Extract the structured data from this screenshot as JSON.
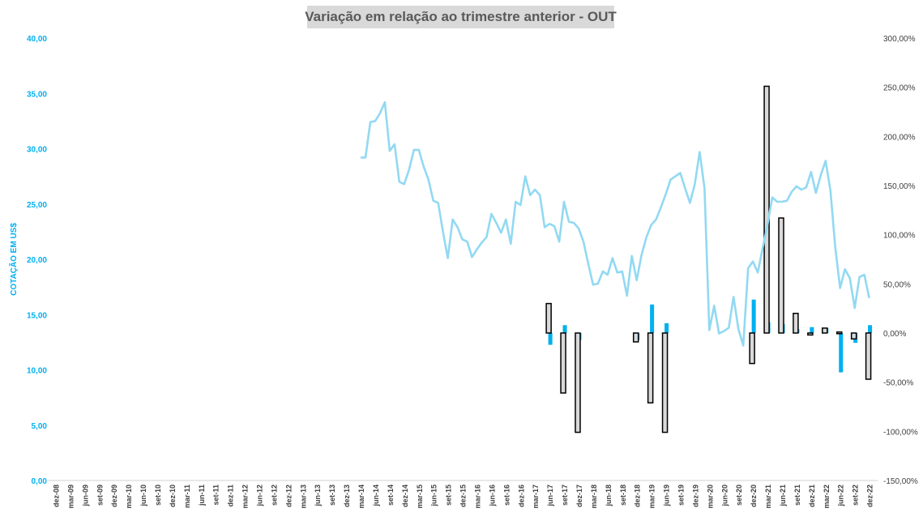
{
  "chart_data": {
    "type": "combo",
    "title": "Variação em relação ao trimestre anterior - OUT",
    "ylabel": "COTAÇÃO EM US$",
    "y_left": {
      "lim": [
        0,
        40
      ],
      "ticks": [
        "0,00",
        "5,00",
        "10,00",
        "15,00",
        "20,00",
        "25,00",
        "30,00",
        "35,00",
        "40,00"
      ]
    },
    "y_right": {
      "lim": [
        -150,
        300
      ],
      "ticks": [
        "-150,00%",
        "-100,00%",
        "-50,00%",
        "0,00%",
        "50,00%",
        "100,00%",
        "150,00%",
        "200,00%",
        "250,00%",
        "300,00%"
      ]
    },
    "grid": false,
    "categories": [
      "dez-08",
      "mar-09",
      "jun-09",
      "set-09",
      "dez-09",
      "mar-10",
      "jun-10",
      "set-10",
      "dez-10",
      "mar-11",
      "jun-11",
      "set-11",
      "dez-11",
      "mar-12",
      "jun-12",
      "set-12",
      "dez-12",
      "mar-13",
      "jun-13",
      "set-13",
      "dez-13",
      "mar-14",
      "jun-14",
      "set-14",
      "dez-14",
      "mar-15",
      "jun-15",
      "set-15",
      "dez-15",
      "mar-16",
      "jun-16",
      "set-16",
      "dez-16",
      "mar-17",
      "jun-17",
      "set-17",
      "dez-17",
      "mar-18",
      "jun-18",
      "set-18",
      "dez-18",
      "mar-19",
      "jun-19",
      "set-19",
      "dez-19",
      "mar-20",
      "jun-20",
      "set-20",
      "dez-20",
      "mar-21",
      "jun-21",
      "set-21",
      "dez-21",
      "mar-22",
      "jun-22",
      "set-22",
      "dez-22"
    ],
    "price_series": {
      "axis": "left",
      "color": "#92d9f2",
      "x_start": 21,
      "x_end": 56,
      "values": [
        29.2,
        29.2,
        32.4,
        32.5,
        33.2,
        34.2,
        29.8,
        30.4,
        27.0,
        26.8,
        28.1,
        29.9,
        29.9,
        28.4,
        27.2,
        25.3,
        25.1,
        22.5,
        20.1,
        23.6,
        22.9,
        21.8,
        21.6,
        20.2,
        20.9,
        21.5,
        22.0,
        24.1,
        23.3,
        22.4,
        23.6,
        21.4,
        25.2,
        24.9,
        27.5,
        25.8,
        26.3,
        25.8,
        22.9,
        23.2,
        23.0,
        21.6,
        25.2,
        23.4,
        23.3,
        22.8,
        21.6,
        19.6,
        17.7,
        17.8,
        18.9,
        18.6,
        20.1,
        18.8,
        18.9,
        16.7,
        20.3,
        18.1,
        20.4,
        22.0,
        23.1,
        23.6,
        24.7,
        25.9,
        27.2,
        27.5,
        27.8,
        26.4,
        25.1,
        26.8,
        29.7,
        26.4,
        13.6,
        15.8,
        13.3,
        13.5,
        13.8,
        16.6,
        13.7,
        12.2,
        19.2,
        19.8,
        18.8,
        21.0,
        23.1,
        25.6,
        25.2,
        25.2,
        25.3,
        26.1,
        26.6,
        26.3,
        26.5,
        27.9,
        26.0,
        27.6,
        28.9,
        26.2,
        21.1,
        17.4,
        19.1,
        18.3,
        15.6,
        18.4,
        18.6,
        16.5
      ]
    },
    "bar_series": {
      "axis": "right",
      "color": "#00b0f0",
      "dark_color": "#1f6fb2",
      "points": [
        {
          "category": "jun-17",
          "value": -12
        },
        {
          "category": "set-17",
          "value": 8
        },
        {
          "category": "dez-17",
          "value": -7
        },
        {
          "category": "dez-18",
          "value": -7
        },
        {
          "category": "mar-19",
          "value": 29
        },
        {
          "category": "jun-19",
          "value": 10
        },
        {
          "category": "dez-20",
          "value": 34
        },
        {
          "category": "mar-21",
          "value": 11
        },
        {
          "category": "jun-21",
          "value": 9
        },
        {
          "category": "set-21",
          "value": 4
        },
        {
          "category": "dez-21",
          "value": 6
        },
        {
          "category": "mar-22",
          "value": 5
        },
        {
          "category": "jun-22",
          "value": -40
        },
        {
          "category": "set-22",
          "value": -10
        },
        {
          "category": "dez-22",
          "value": 8
        }
      ]
    },
    "box_series": {
      "axis": "right",
      "fill": "#d9d9d9",
      "stroke": "#000000",
      "points": [
        {
          "category": "jun-17",
          "value": 30
        },
        {
          "category": "set-17",
          "value": -61
        },
        {
          "category": "dez-17",
          "value": -101
        },
        {
          "category": "dez-18",
          "value": -9
        },
        {
          "category": "mar-19",
          "value": -71
        },
        {
          "category": "jun-19",
          "value": -101
        },
        {
          "category": "dez-20",
          "value": -31
        },
        {
          "category": "mar-21",
          "value": 251
        },
        {
          "category": "jun-21",
          "value": 117
        },
        {
          "category": "set-21",
          "value": 20
        },
        {
          "category": "dez-21",
          "value": -2
        },
        {
          "category": "mar-22",
          "value": 5
        },
        {
          "category": "jun-22",
          "value": 1
        },
        {
          "category": "set-22",
          "value": -6
        },
        {
          "category": "dez-22",
          "value": -47
        }
      ]
    }
  }
}
